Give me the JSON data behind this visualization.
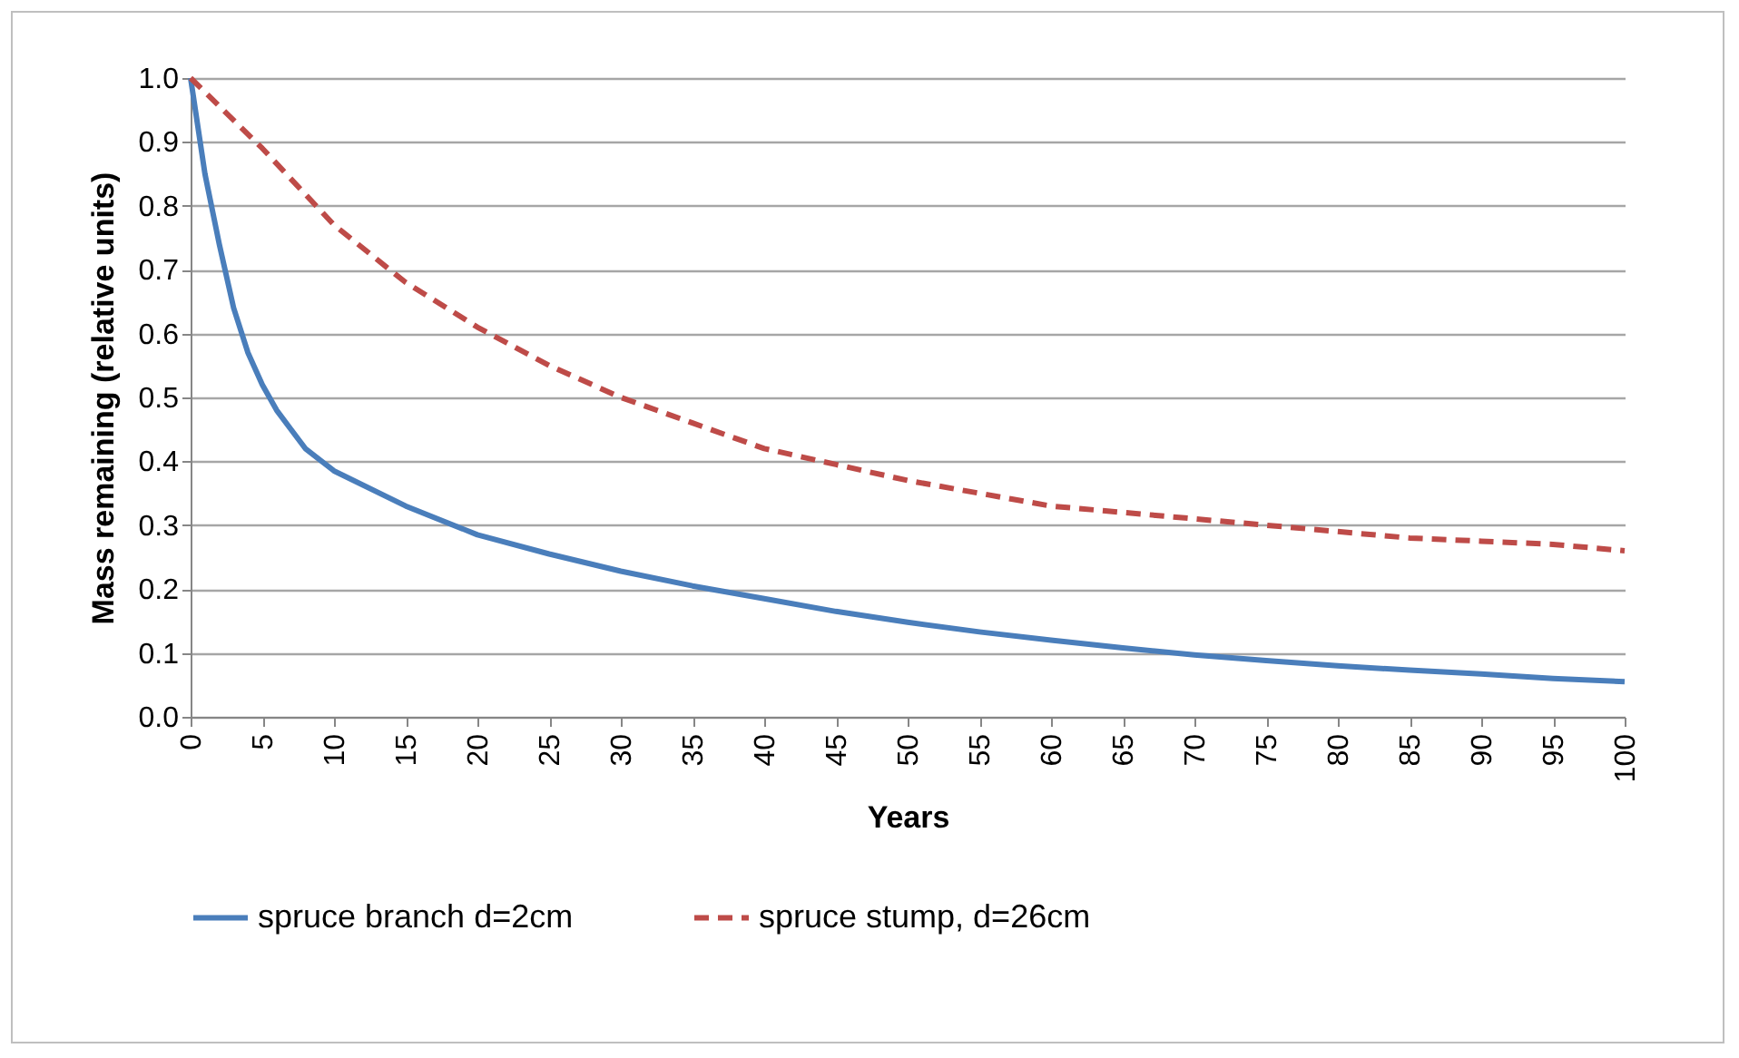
{
  "chart_data": {
    "type": "line",
    "xlabel": "Years",
    "ylabel": "Mass remaining (relative units)",
    "xlim": [
      0,
      100
    ],
    "xticks": [
      0,
      5,
      10,
      15,
      20,
      25,
      30,
      35,
      40,
      45,
      50,
      55,
      60,
      65,
      70,
      75,
      80,
      85,
      90,
      95,
      100
    ],
    "ylim": [
      0,
      1
    ],
    "yticks": [
      {
        "value": 0,
        "label": "0.0"
      },
      0.1,
      0.2,
      0.3,
      0.4,
      0.5,
      0.6,
      0.7,
      0.8,
      0.9,
      {
        "value": 1,
        "label": "1.0"
      }
    ],
    "grid": "y",
    "legend": "bottom",
    "series": [
      {
        "name": "spruce branch d=2cm",
        "color": "#4a7ebb",
        "line_style": "solid",
        "x": [
          0,
          1,
          2,
          3,
          4,
          5,
          6,
          7,
          8,
          10,
          15,
          20,
          25,
          30,
          35,
          40,
          45,
          50,
          55,
          60,
          65,
          70,
          75,
          80,
          85,
          90,
          95,
          100
        ],
        "values": [
          1.0,
          0.85,
          0.74,
          0.64,
          0.57,
          0.52,
          0.48,
          0.45,
          0.42,
          0.385,
          0.33,
          0.285,
          0.255,
          0.228,
          0.205,
          0.185,
          0.165,
          0.148,
          0.133,
          0.12,
          0.108,
          0.097,
          0.088,
          0.08,
          0.073,
          0.067,
          0.06,
          0.055
        ]
      },
      {
        "name": "spruce stump, d=26cm",
        "color": "#be4b48",
        "line_style": "dashed",
        "x": [
          0,
          5,
          10,
          15,
          20,
          25,
          30,
          35,
          40,
          45,
          50,
          55,
          60,
          65,
          70,
          75,
          80,
          85,
          90,
          95,
          100
        ],
        "values": [
          1.0,
          0.89,
          0.77,
          0.68,
          0.61,
          0.55,
          0.5,
          0.46,
          0.42,
          0.395,
          0.37,
          0.35,
          0.33,
          0.32,
          0.31,
          0.3,
          0.29,
          0.28,
          0.275,
          0.27,
          0.26
        ]
      }
    ]
  }
}
